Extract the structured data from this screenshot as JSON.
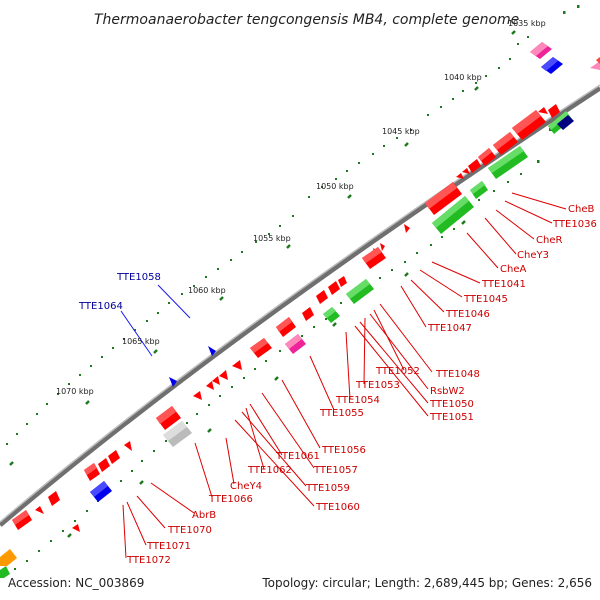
{
  "title": "Thermoanaerobacter tengcongensis MB4, complete genome",
  "footer": {
    "accession": "Accession: NC_003869",
    "info": "Topology: circular; Length: 2,689,445 bp; Genes: 2,656"
  },
  "colors": {
    "background": "#ffffff",
    "backbone": "#8a8a8a",
    "tick": "#1f7a1f",
    "gene_red": "#ff0000",
    "gene_green": "#22bb22",
    "gene_blue": "#0000ee",
    "gene_magenta": "#ee2299",
    "gene_gray": "#bbbbbb",
    "gene_orange": "#ff9900",
    "gene_navy": "#000080",
    "gene_pink": "#ff88bb",
    "label_red": "#cc0000",
    "label_blue": "#000099"
  },
  "scale_labels": [
    "1035 kbp",
    "1040 kbp",
    "1045 kbp",
    "1050 kbp",
    "1055 kbp",
    "1060 kbp",
    "1065 kbp",
    "1070 kbp"
  ],
  "gene_labels": [
    "CheB",
    "TTE1036",
    "CheR",
    "CheY3",
    "CheA",
    "TTE1041",
    "TTE1045",
    "TTE1046",
    "TTE1047",
    "TTE1048",
    "TTE1052",
    "RsbW2",
    "TTE1053",
    "TTE1050",
    "TTE1051",
    "TTE1054",
    "TTE1055",
    "TTE1056",
    "TTE1057",
    "TTE1061",
    "TTE1062",
    "TTE1059",
    "TTE1060",
    "CheY4",
    "TTE1066",
    "AbrB",
    "TTE1070",
    "TTE1071",
    "TTE1072",
    "TTE1058",
    "TTE1064"
  ]
}
